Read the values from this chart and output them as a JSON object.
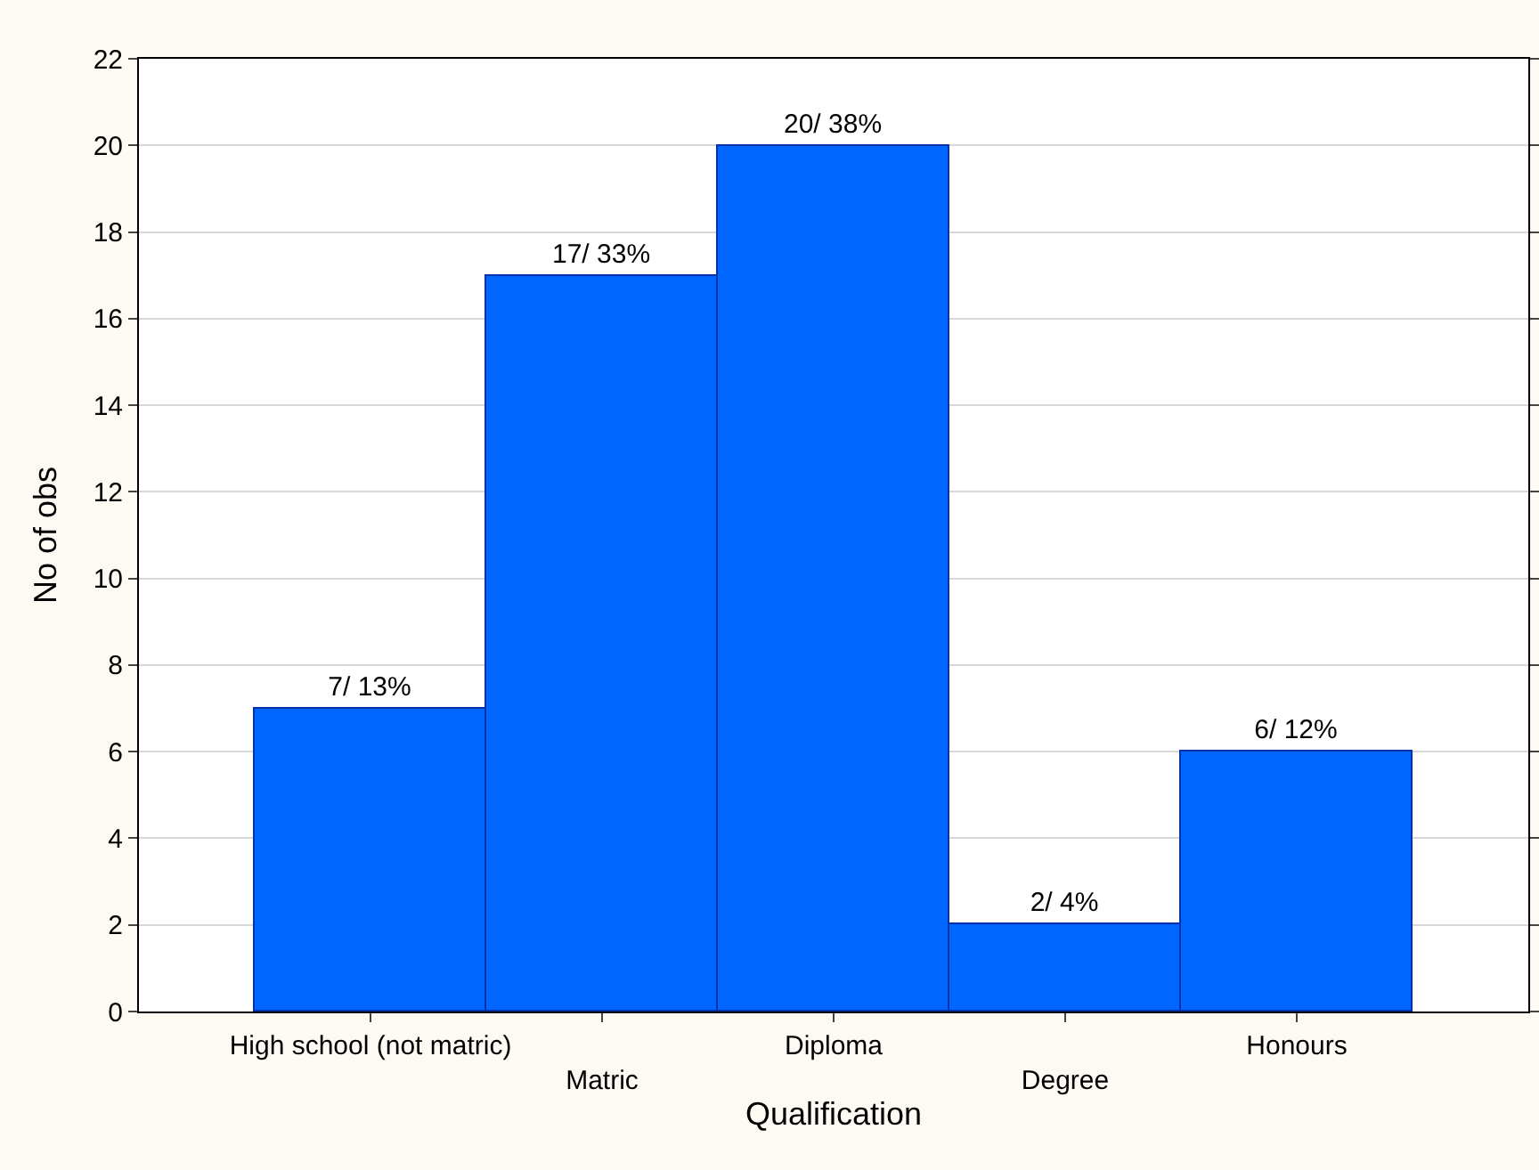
{
  "chart_data": {
    "type": "bar",
    "xlabel": "Qualification",
    "ylabel": "No of obs",
    "categories": [
      "High school (not matric)",
      "Matric",
      "Diploma",
      "Degree",
      "Honours"
    ],
    "values": [
      7,
      17,
      20,
      2,
      6
    ],
    "value_labels": [
      "7/ 13%",
      "17/ 33%",
      "20/ 38%",
      "2/ 4%",
      "6/ 12%"
    ],
    "color": "#0066ff",
    "ylim": [
      0,
      22
    ],
    "yticks": [
      0,
      2,
      4,
      6,
      8,
      10,
      12,
      14,
      16,
      18,
      20,
      22
    ],
    "grid": "y"
  }
}
